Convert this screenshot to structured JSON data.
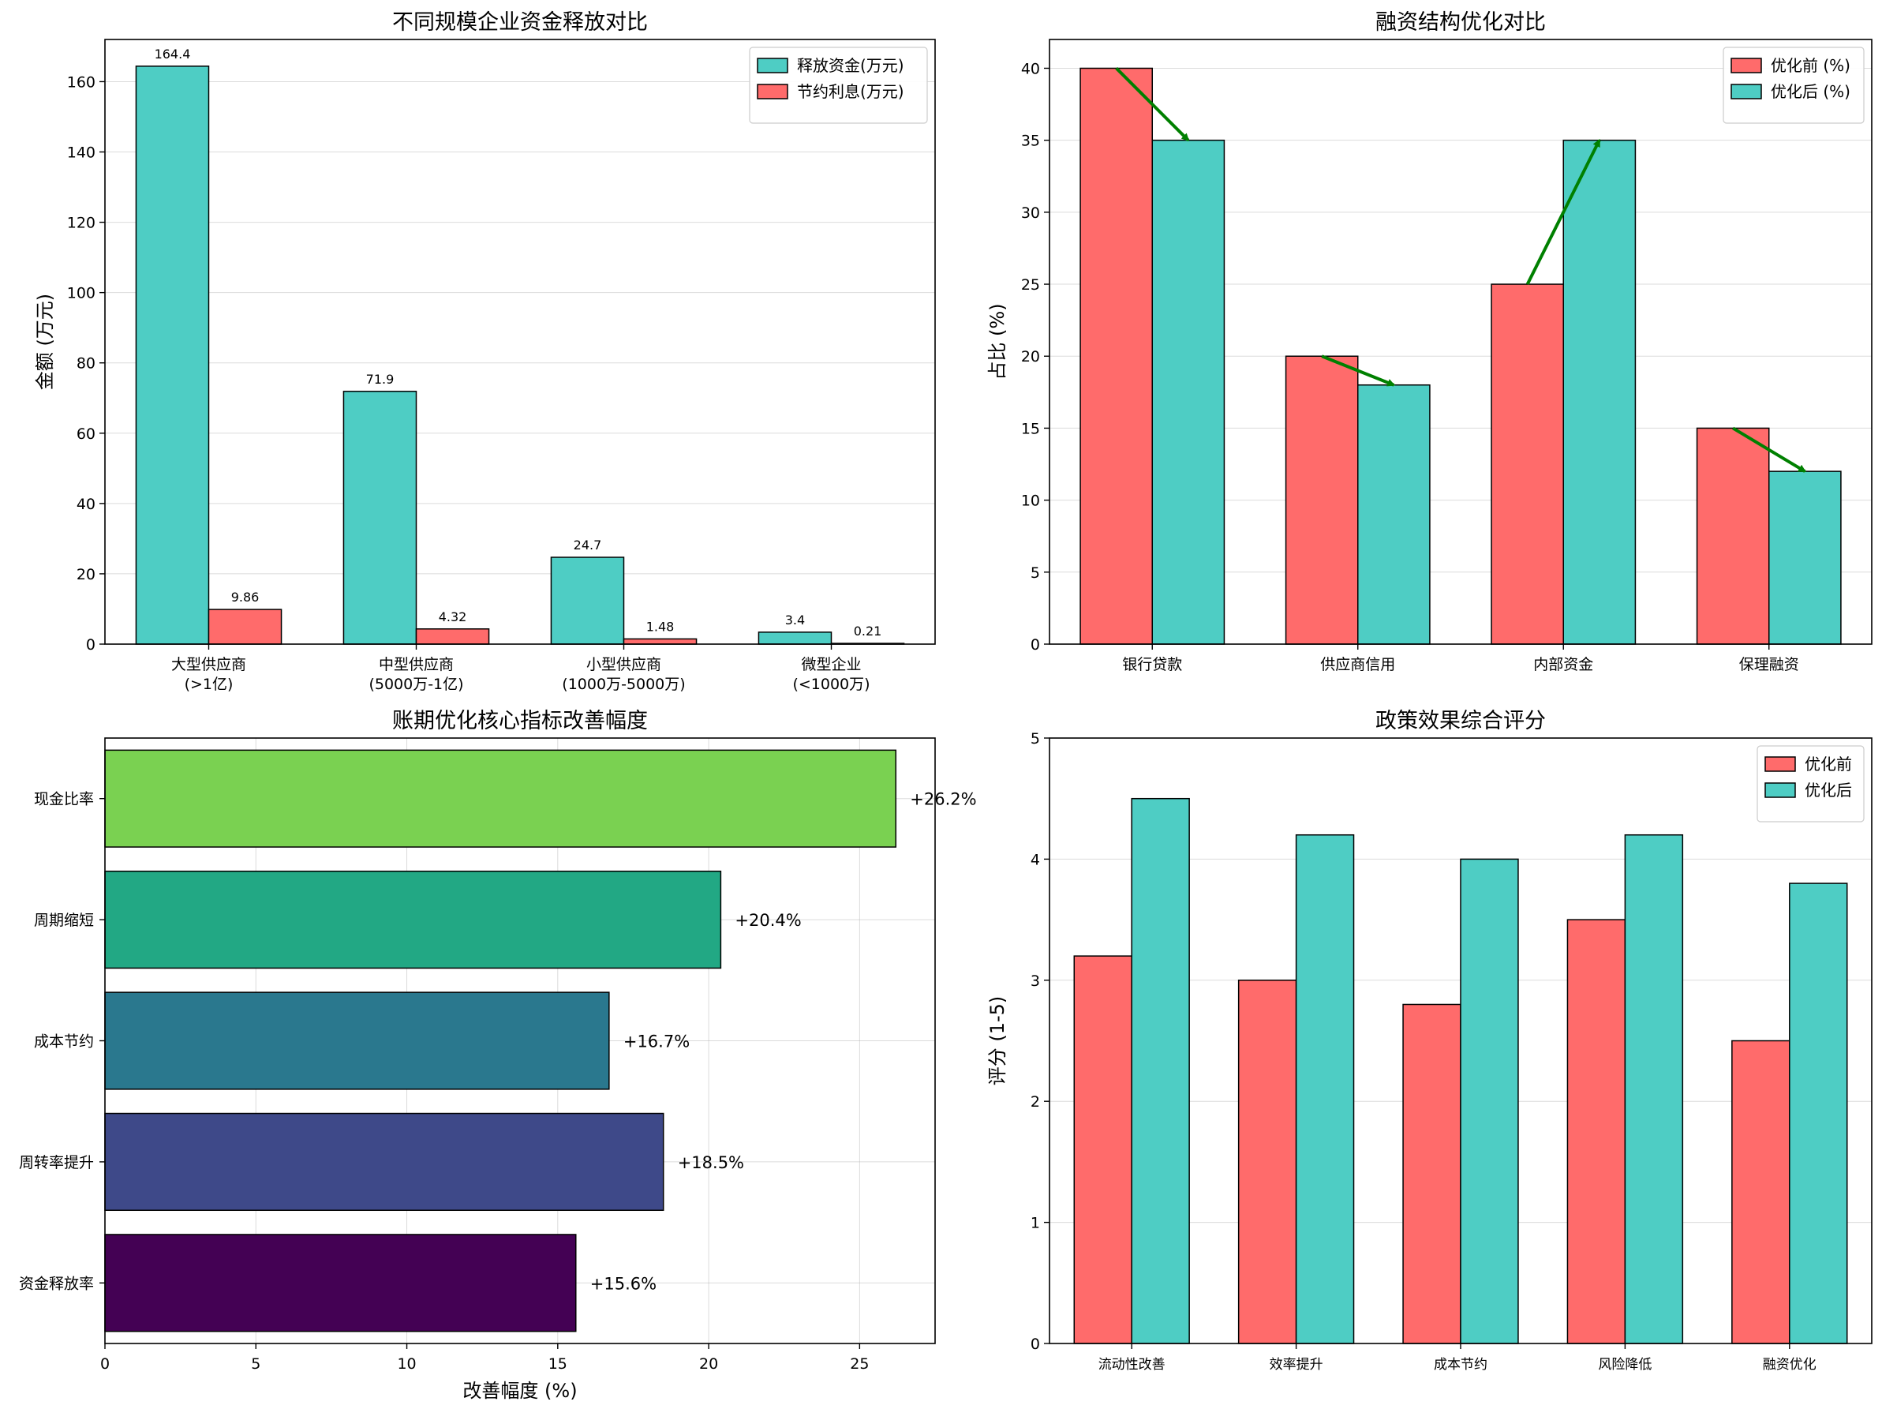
{
  "chart_data": [
    {
      "id": "c1",
      "type": "bar",
      "title": "不同规模企业资金释放对比",
      "xlabel": "",
      "ylabel": "金额 (万元)",
      "ylim": [
        0,
        172
      ],
      "yticks": [
        0,
        20,
        40,
        60,
        80,
        100,
        120,
        140,
        160
      ],
      "grid": "y",
      "legend": "top-right",
      "categories": [
        [
          "大型供应商",
          "(>1亿)"
        ],
        [
          "中型供应商",
          "(5000万-1亿)"
        ],
        [
          "小型供应商",
          "(1000万-5000万)"
        ],
        [
          "微型企业",
          "(<1000万)"
        ]
      ],
      "series": [
        {
          "name": "释放资金(万元)",
          "color": "#4ECDC4",
          "values": [
            164.4,
            71.9,
            24.7,
            3.4
          ],
          "labels": [
            "164.4",
            "71.9",
            "24.7",
            "3.4"
          ]
        },
        {
          "name": "节约利息(万元)",
          "color": "#FF6B6B",
          "values": [
            9.86,
            4.32,
            1.48,
            0.21
          ],
          "labels": [
            "9.86",
            "4.32",
            "1.48",
            "0.21"
          ]
        }
      ]
    },
    {
      "id": "c2",
      "type": "bar",
      "title": "融资结构优化对比",
      "xlabel": "",
      "ylabel": "占比 (%)",
      "ylim": [
        0,
        42
      ],
      "yticks": [
        0,
        5,
        10,
        15,
        20,
        25,
        30,
        35,
        40
      ],
      "grid": "y",
      "legend": "top-right",
      "arrows": true,
      "arrow_color": "#008000",
      "categories": [
        [
          "银行贷款"
        ],
        [
          "供应商信用"
        ],
        [
          "内部资金"
        ],
        [
          "保理融资"
        ]
      ],
      "series": [
        {
          "name": "优化前 (%)",
          "color": "#FF6B6B",
          "values": [
            40,
            20,
            25,
            15
          ]
        },
        {
          "name": "优化后 (%)",
          "color": "#4ECDC4",
          "values": [
            35,
            18,
            35,
            12
          ]
        }
      ]
    },
    {
      "id": "c3",
      "type": "barh",
      "title": "账期优化核心指标改善幅度",
      "xlabel": "改善幅度 (%)",
      "ylabel": "",
      "xlim": [
        0,
        27.5
      ],
      "xticks": [
        0,
        5,
        10,
        15,
        20,
        25
      ],
      "grid": "both",
      "categories": [
        "资金释放率",
        "周转率提升",
        "成本节约",
        "周期缩短",
        "现金比率"
      ],
      "values": [
        15.6,
        18.5,
        16.7,
        20.4,
        26.2
      ],
      "labels": [
        "+15.6%",
        "+18.5%",
        "+16.7%",
        "+20.4%",
        "+26.2%"
      ],
      "colors": [
        "#440154",
        "#3E4989",
        "#2A788E",
        "#22A884",
        "#7AD151"
      ]
    },
    {
      "id": "c4",
      "type": "bar",
      "title": "政策效果综合评分",
      "xlabel": "",
      "ylabel": "评分 (1-5)",
      "ylim": [
        0,
        5
      ],
      "yticks": [
        0,
        1,
        2,
        3,
        4,
        5
      ],
      "grid": "y",
      "legend": "top-right",
      "categories": [
        [
          "流动性改善"
        ],
        [
          "效率提升"
        ],
        [
          "成本节约"
        ],
        [
          "风险降低"
        ],
        [
          "融资优化"
        ]
      ],
      "series": [
        {
          "name": "优化前",
          "color": "#FF6B6B",
          "values": [
            3.2,
            3.0,
            2.8,
            3.5,
            2.5
          ]
        },
        {
          "name": "优化后",
          "color": "#4ECDC4",
          "values": [
            4.5,
            4.2,
            4.0,
            4.2,
            3.8
          ]
        }
      ]
    }
  ]
}
